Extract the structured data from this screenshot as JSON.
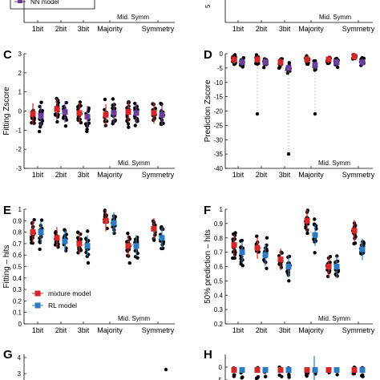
{
  "figure": {
    "top_fragment": {
      "legend_label": "NN model",
      "mid_label": "Mid. Symm",
      "x_ticks": [
        "1bit",
        "2bit",
        "3bit",
        "Majority",
        "Symmetry"
      ],
      "right_mid_label": "Mid. Symm",
      "right_y_fragment": "5"
    }
  },
  "chart_data": [
    {
      "panel": "C",
      "type": "scatter",
      "ylabel": "Fitting Zscore",
      "ylim": [
        -3,
        3
      ],
      "yticks": [
        -3,
        -2,
        -1,
        0,
        1,
        2,
        3
      ],
      "categories": [
        "1bit",
        "2bit",
        "3bit",
        "Majority",
        "Mid. Symm",
        "Symmetry"
      ],
      "series_colors": [
        "#d62728",
        "#6a3d9a"
      ],
      "means": [
        [
          -0.15,
          -0.25
        ],
        [
          0.1,
          -0.05
        ],
        [
          -0.1,
          -0.3
        ],
        [
          -0.2,
          -0.1
        ],
        [
          -0.05,
          -0.1
        ],
        [
          -0.1,
          -0.2
        ]
      ],
      "annotation": "Mid. Symm"
    },
    {
      "panel": "D",
      "type": "scatter",
      "ylabel": "Prediction Zscore",
      "ylim": [
        -40,
        0
      ],
      "yticks": [
        -40,
        -35,
        -30,
        -25,
        -20,
        -15,
        -10,
        -5,
        0
      ],
      "categories": [
        "1bit",
        "2bit",
        "3bit",
        "Majority",
        "Mid. Symm",
        "Symmetry"
      ],
      "series_colors": [
        "#d62728",
        "#6a3d9a"
      ],
      "means": [
        [
          -2,
          -3
        ],
        [
          -2,
          -3
        ],
        [
          -3,
          -5
        ],
        [
          -2,
          -4
        ],
        [
          -2,
          -3
        ],
        [
          -1,
          -3
        ]
      ],
      "outliers": [
        -21,
        -35,
        -21
      ],
      "annotation": "Mid. Symm"
    },
    {
      "panel": "E",
      "type": "scatter",
      "ylabel": "Fitting – hits",
      "ylim": [
        0,
        1
      ],
      "yticks": [
        0,
        0.1,
        0.2,
        0.3,
        0.4,
        0.5,
        0.6,
        0.7,
        0.8,
        0.9,
        1
      ],
      "categories": [
        "1bit",
        "2bit",
        "3bit",
        "Majority",
        "Mid. Symm",
        "Symmetry"
      ],
      "series_colors": [
        "#d62728",
        "#2d7bc4"
      ],
      "means": [
        [
          0.8,
          0.8
        ],
        [
          0.75,
          0.72
        ],
        [
          0.7,
          0.68
        ],
        [
          0.9,
          0.88
        ],
        [
          0.68,
          0.68
        ],
        [
          0.83,
          0.75
        ]
      ],
      "legend": [
        "mixture model",
        "RL model"
      ],
      "annotation": "Mid. Symm"
    },
    {
      "panel": "F",
      "type": "scatter",
      "ylabel": "50% prediction – hits",
      "ylim": [
        0.2,
        1
      ],
      "yticks": [
        0.2,
        0.3,
        0.4,
        0.5,
        0.6,
        0.7,
        0.8,
        0.9,
        1
      ],
      "categories": [
        "1bit",
        "2bit",
        "3bit",
        "Majority",
        "Mid. Symm",
        "Symmetry"
      ],
      "series_colors": [
        "#d62728",
        "#2d7bc4"
      ],
      "means": [
        [
          0.75,
          0.7
        ],
        [
          0.73,
          0.68
        ],
        [
          0.65,
          0.6
        ],
        [
          0.92,
          0.82
        ],
        [
          0.6,
          0.6
        ],
        [
          0.85,
          0.72
        ]
      ],
      "annotation": "Mid. Symm"
    },
    {
      "panel": "G",
      "type": "scatter",
      "yticks_visible": [
        4,
        3
      ],
      "point": [
        3.2
      ]
    },
    {
      "panel": "H",
      "type": "scatter",
      "yticks_visible": [
        0,
        -5
      ],
      "series_colors": [
        "#d62728",
        "#2d7bc4"
      ]
    }
  ]
}
